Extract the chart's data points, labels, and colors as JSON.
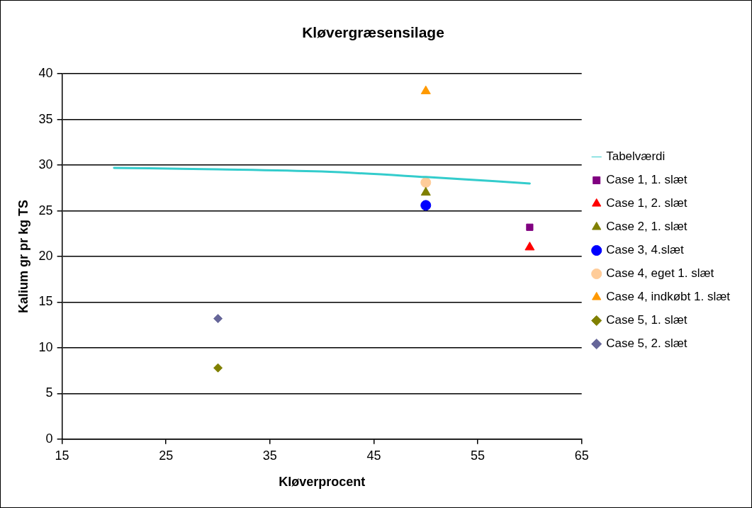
{
  "chart_data": {
    "type": "scatter",
    "title": "Kløvergræsensilage",
    "xlabel": "Kløverprocent",
    "ylabel": "Kalium gr pr kg TS",
    "xlim": [
      15,
      65
    ],
    "xticks": [
      15,
      25,
      35,
      45,
      55,
      65
    ],
    "ylim": [
      0,
      40
    ],
    "yticks": [
      0,
      5,
      10,
      15,
      20,
      25,
      30,
      35,
      40
    ],
    "grid": "y",
    "legend": "right",
    "series": [
      {
        "name": "Tabelværdi",
        "type": "line",
        "color": "#33cccc",
        "marker": "none",
        "x": [
          20,
          30,
          40,
          50,
          60
        ],
        "values": [
          29.7,
          29.55,
          29.3,
          28.7,
          28.0
        ]
      },
      {
        "name": "Case 1, 1. slæt",
        "color": "#800080",
        "marker": "square",
        "x": [
          60
        ],
        "values": [
          23.2
        ]
      },
      {
        "name": "Case 1, 2. slæt",
        "color": "#ff0000",
        "marker": "triangle",
        "x": [
          60
        ],
        "values": [
          21.0
        ]
      },
      {
        "name": "Case 2, 1. slæt",
        "color": "#808000",
        "marker": "triangle",
        "x": [
          50
        ],
        "values": [
          27.0
        ]
      },
      {
        "name": "Case 3, 4.slæt",
        "color": "#0000ff",
        "marker": "circle",
        "x": [
          50
        ],
        "values": [
          25.6
        ]
      },
      {
        "name": "Case 4, eget 1. slæt",
        "color": "#ffcc99",
        "marker": "circle",
        "x": [
          50
        ],
        "values": [
          28.1
        ]
      },
      {
        "name": "Case 4, indkøbt 1. slæt",
        "color": "#ff9900",
        "marker": "triangle",
        "x": [
          50
        ],
        "values": [
          38.1
        ]
      },
      {
        "name": "Case 5, 1. slæt",
        "color": "#808000",
        "marker": "diamond",
        "x": [
          30
        ],
        "values": [
          7.8
        ]
      },
      {
        "name": "Case 5, 2. slæt",
        "color": "#666699",
        "marker": "diamond",
        "x": [
          30
        ],
        "values": [
          13.2
        ]
      }
    ]
  }
}
